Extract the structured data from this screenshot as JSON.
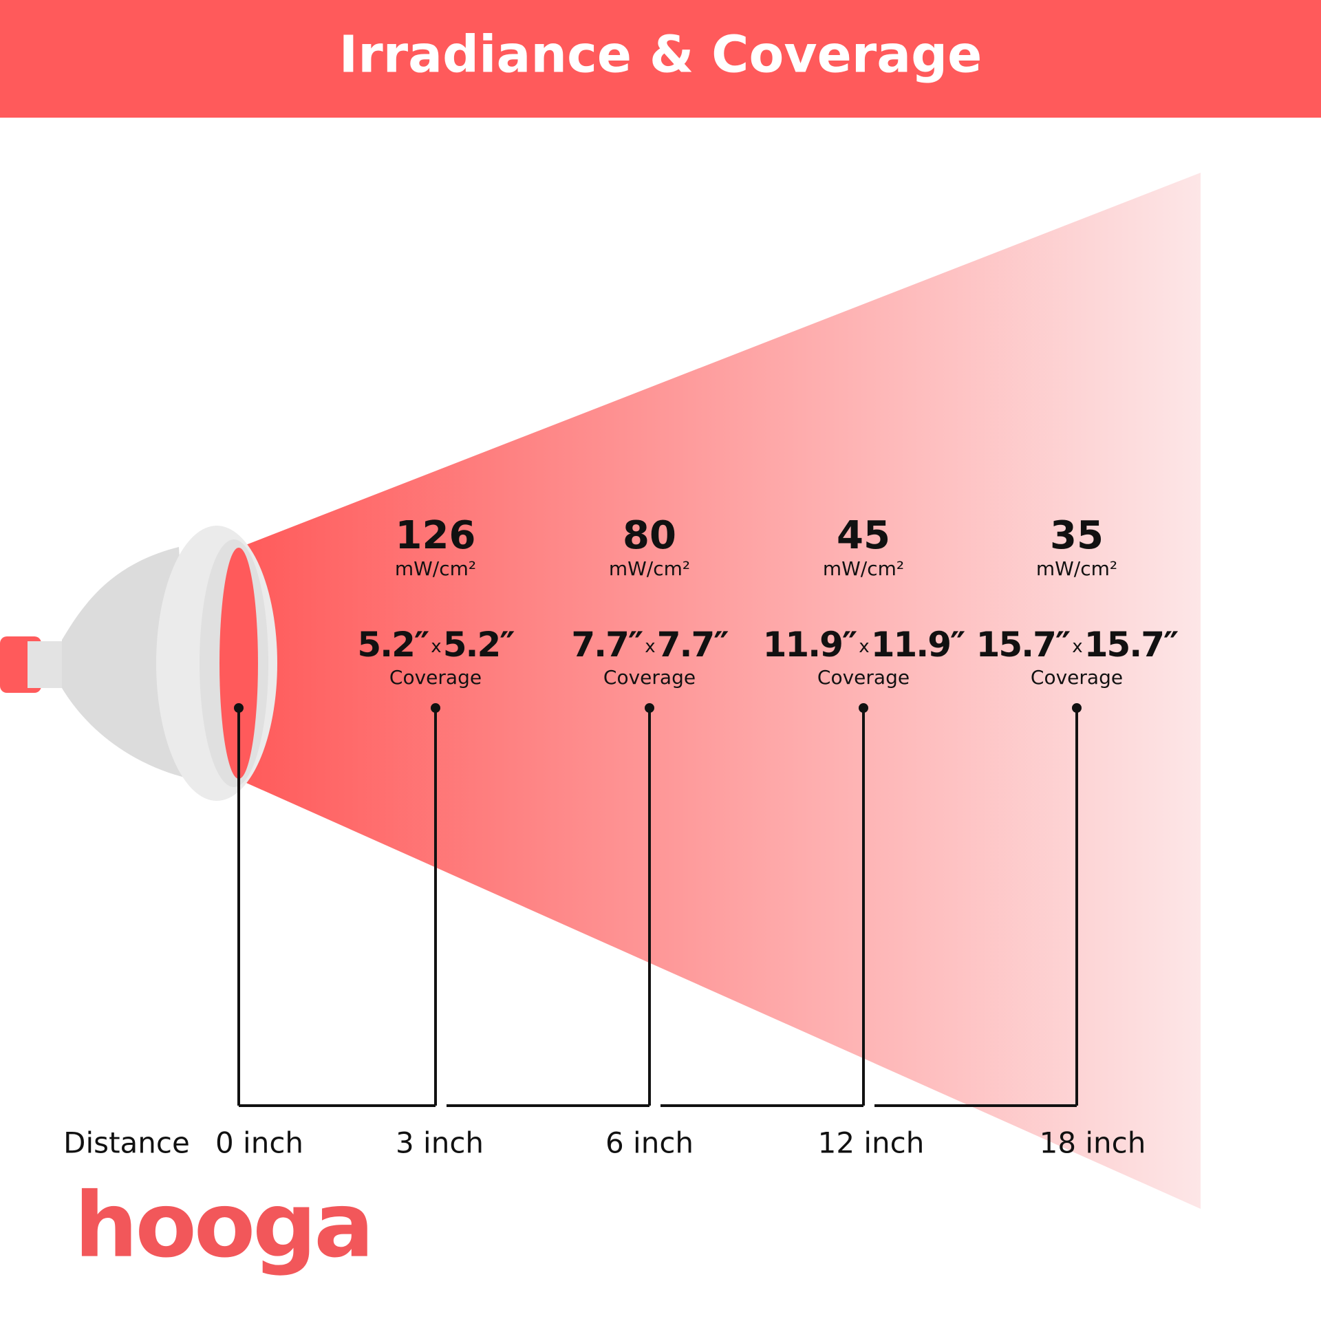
{
  "header": {
    "title": "Irradiance & Coverage"
  },
  "measurements": [
    {
      "irradiance": "126",
      "unit": "mW/cm²",
      "width": "5.2″",
      "times": "x",
      "height": "5.2″",
      "label": "Coverage"
    },
    {
      "irradiance": "80",
      "unit": "mW/cm²",
      "width": "7.7″",
      "times": "x",
      "height": "7.7″",
      "label": "Coverage"
    },
    {
      "irradiance": "45",
      "unit": "mW/cm²",
      "width": "11.9″",
      "times": "x",
      "height": "11.9″",
      "label": "Coverage"
    },
    {
      "irradiance": "35",
      "unit": "mW/cm²",
      "width": "15.7″",
      "times": "x",
      "height": "15.7″",
      "label": "Coverage"
    }
  ],
  "distance": {
    "label": "Distance",
    "values": [
      "0 inch",
      "3 inch",
      "6 inch",
      "12 inch",
      "18 inch"
    ]
  },
  "logo": "hooga"
}
